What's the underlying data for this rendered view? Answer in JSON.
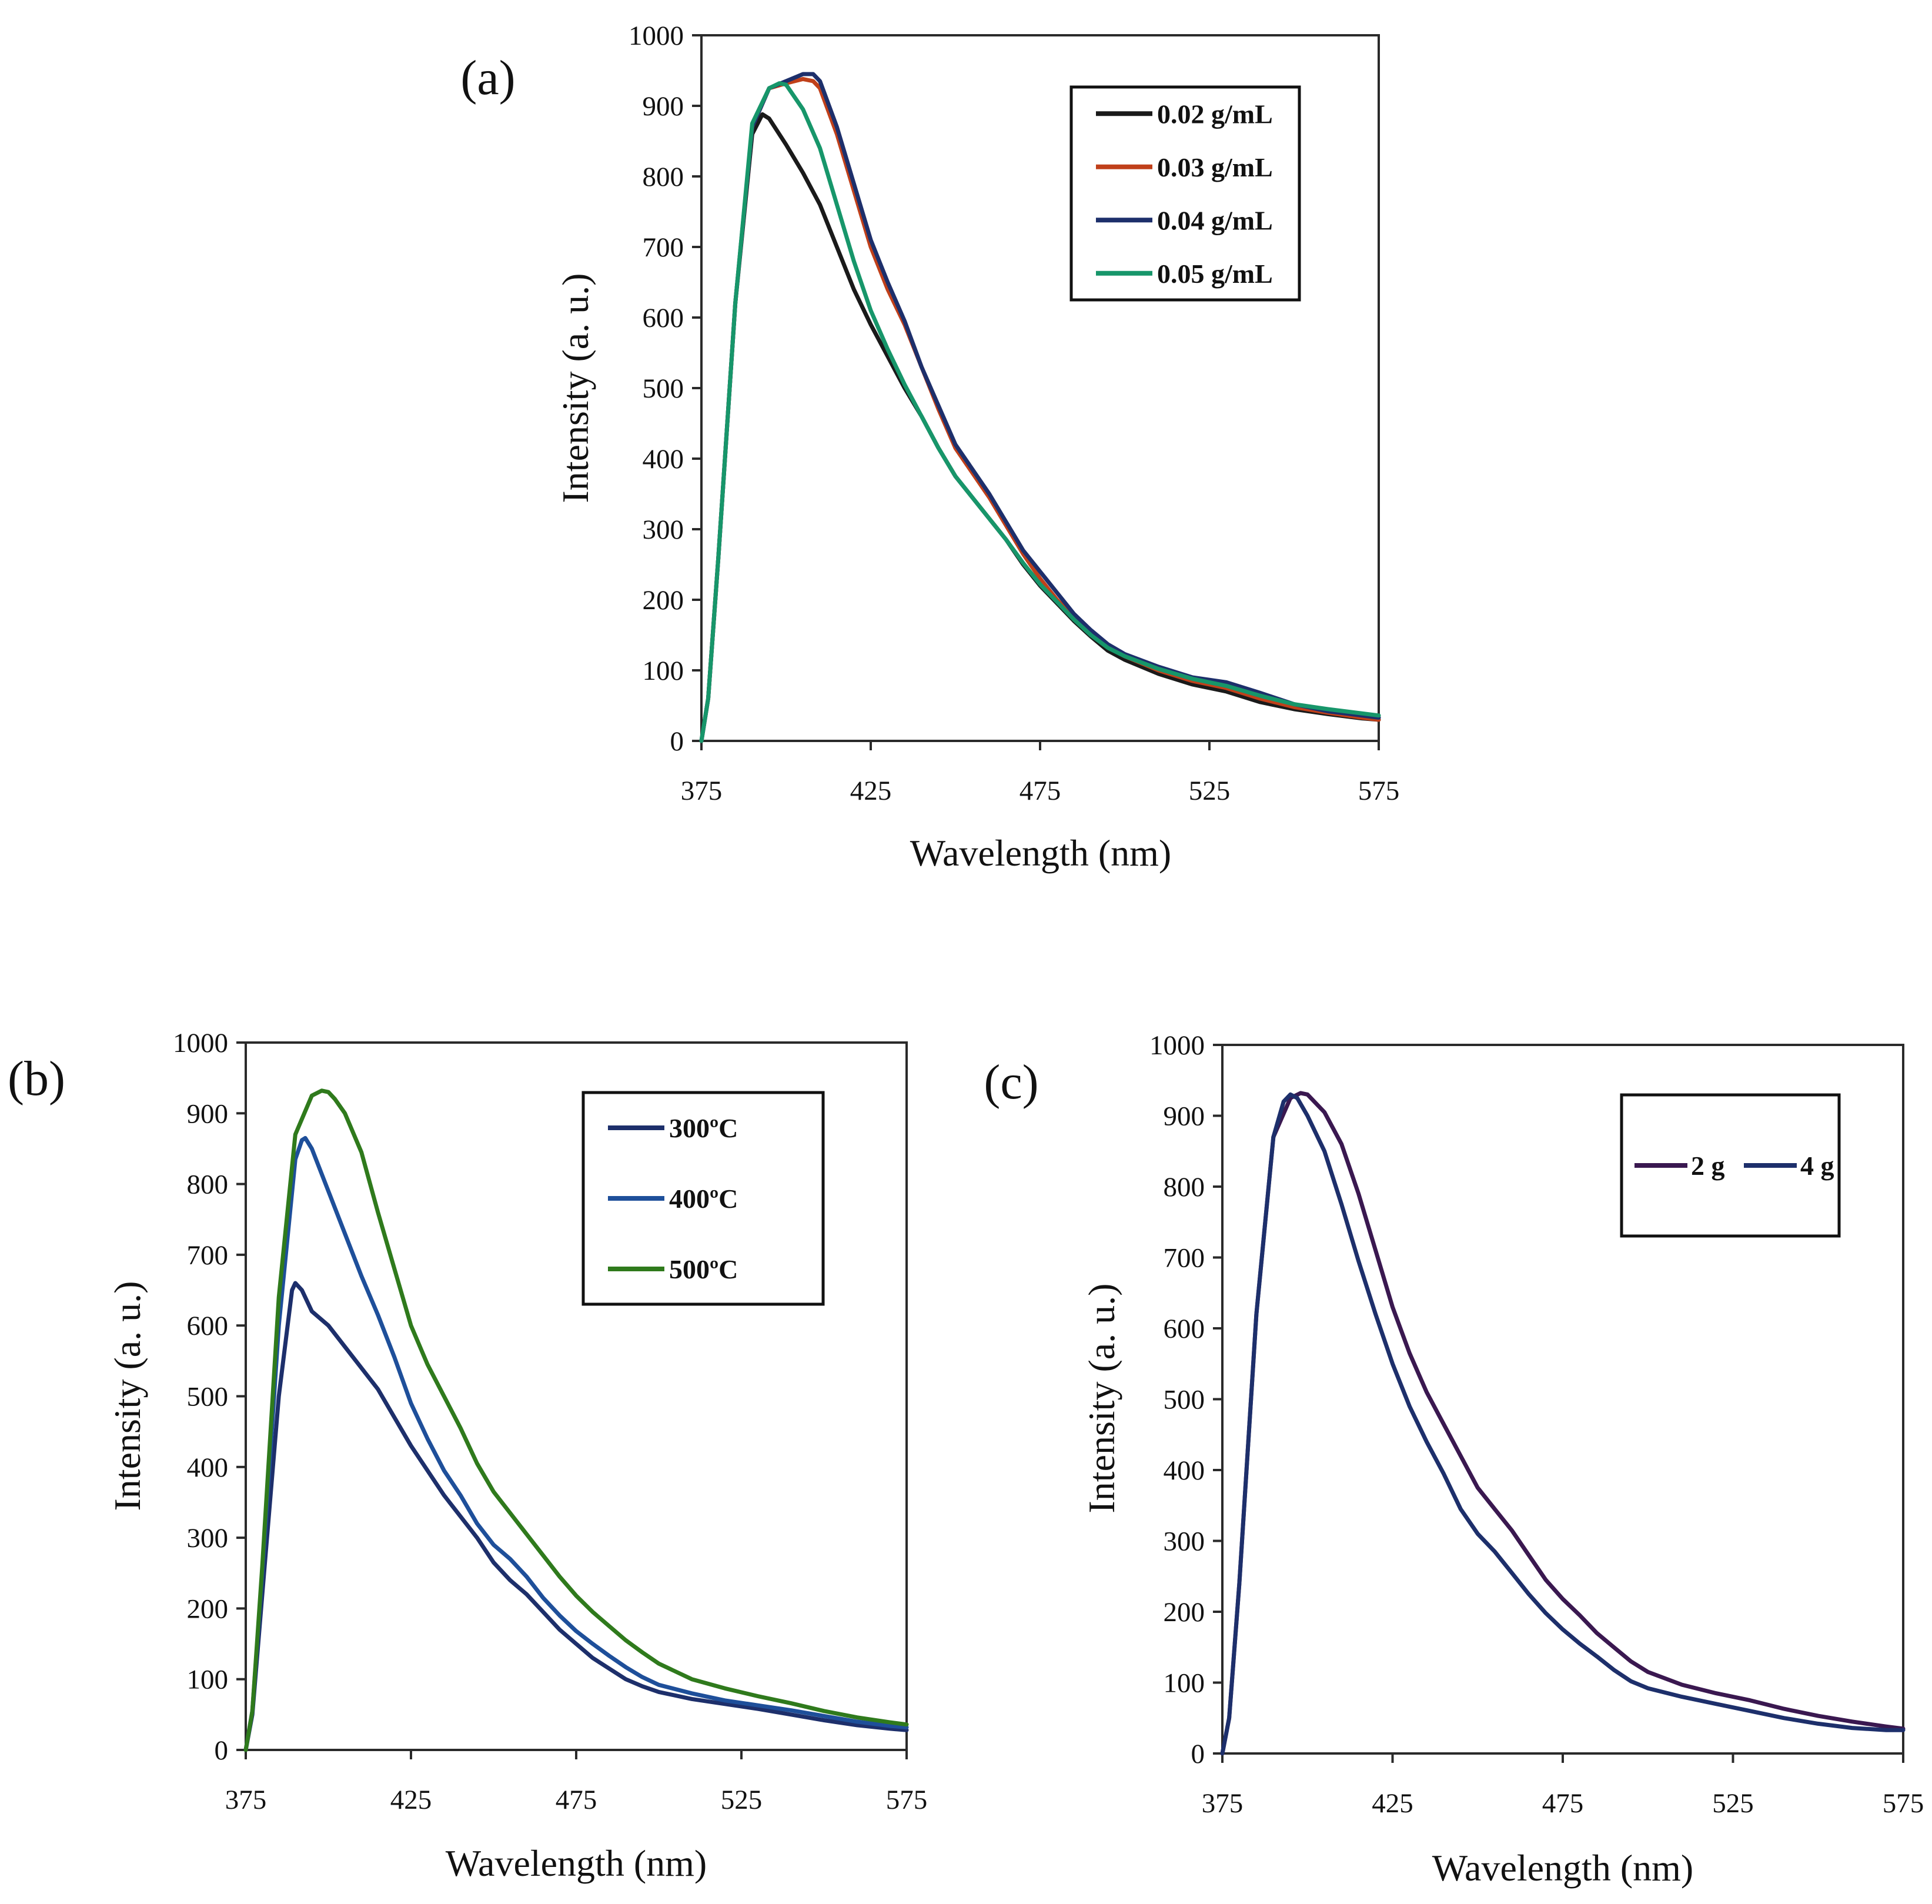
{
  "chart_data": [
    {
      "id": "a",
      "type": "line",
      "panel_label": "(a)",
      "xlabel": "Wavelength  (nm)",
      "ylabel": "Intensity  (a. u.)",
      "xlim": [
        375,
        575
      ],
      "ylim": [
        0,
        1000
      ],
      "xticks": [
        375,
        425,
        475,
        525,
        575
      ],
      "yticks": [
        0,
        100,
        200,
        300,
        400,
        500,
        600,
        700,
        800,
        900,
        1000
      ],
      "legend_position": "top-right",
      "legend_layout": "vertical",
      "series": [
        {
          "name": "0.02 g/mL",
          "color": "#1a1a1a",
          "x": [
            375,
            377,
            380,
            385,
            390,
            393,
            395,
            400,
            405,
            410,
            415,
            420,
            425,
            430,
            435,
            440,
            445,
            450,
            455,
            460,
            465,
            470,
            475,
            480,
            485,
            490,
            495,
            500,
            510,
            520,
            530,
            540,
            550,
            560,
            570,
            575
          ],
          "y": [
            0,
            60,
            260,
            620,
            860,
            888,
            882,
            845,
            805,
            760,
            700,
            640,
            590,
            545,
            500,
            460,
            415,
            375,
            345,
            315,
            285,
            250,
            220,
            195,
            170,
            148,
            128,
            115,
            95,
            80,
            70,
            55,
            45,
            38,
            32,
            30
          ]
        },
        {
          "name": "0.03 g/mL",
          "color": "#c0401a",
          "x": [
            375,
            377,
            380,
            385,
            390,
            395,
            400,
            405,
            408,
            410,
            415,
            420,
            425,
            430,
            435,
            440,
            445,
            450,
            455,
            460,
            465,
            470,
            475,
            480,
            485,
            490,
            495,
            500,
            510,
            520,
            530,
            540,
            550,
            560,
            570,
            575
          ],
          "y": [
            0,
            60,
            260,
            620,
            870,
            925,
            932,
            938,
            935,
            925,
            860,
            780,
            700,
            640,
            590,
            530,
            470,
            415,
            380,
            345,
            305,
            265,
            230,
            200,
            175,
            152,
            133,
            120,
            100,
            85,
            75,
            60,
            48,
            40,
            33,
            30
          ]
        },
        {
          "name": "0.04 g/mL",
          "color": "#1d2f6b",
          "x": [
            375,
            377,
            380,
            385,
            390,
            395,
            400,
            405,
            408,
            410,
            415,
            420,
            425,
            430,
            435,
            440,
            445,
            450,
            455,
            460,
            465,
            470,
            475,
            480,
            485,
            490,
            495,
            500,
            510,
            520,
            530,
            540,
            550,
            560,
            570,
            575
          ],
          "y": [
            0,
            60,
            260,
            620,
            870,
            925,
            935,
            945,
            945,
            935,
            870,
            790,
            710,
            650,
            595,
            530,
            475,
            420,
            385,
            350,
            310,
            270,
            240,
            210,
            180,
            157,
            137,
            123,
            105,
            90,
            83,
            68,
            52,
            42,
            36,
            33
          ]
        },
        {
          "name": "0.05 g/mL",
          "color": "#17966a",
          "x": [
            375,
            377,
            380,
            385,
            390,
            395,
            398,
            400,
            405,
            410,
            415,
            420,
            425,
            430,
            435,
            440,
            445,
            450,
            455,
            460,
            465,
            470,
            475,
            480,
            485,
            490,
            495,
            500,
            510,
            520,
            530,
            540,
            550,
            560,
            570,
            575
          ],
          "y": [
            0,
            60,
            260,
            620,
            875,
            925,
            932,
            930,
            895,
            840,
            760,
            680,
            610,
            555,
            505,
            460,
            415,
            375,
            345,
            315,
            285,
            252,
            222,
            197,
            172,
            150,
            132,
            120,
            102,
            88,
            78,
            64,
            52,
            45,
            39,
            36
          ]
        }
      ]
    },
    {
      "id": "b",
      "type": "line",
      "panel_label": "(b)",
      "xlabel": "Wavelength  (nm)",
      "ylabel": "Intensity  (a. u.)",
      "xlim": [
        375,
        575
      ],
      "ylim": [
        0,
        1000
      ],
      "xticks": [
        375,
        425,
        475,
        525,
        575
      ],
      "yticks": [
        0,
        100,
        200,
        300,
        400,
        500,
        600,
        700,
        800,
        900,
        1000
      ],
      "legend_position": "top-right",
      "legend_layout": "vertical",
      "series": [
        {
          "name": "300ºC",
          "color": "#1d2f6b",
          "x": [
            375,
            377,
            380,
            385,
            389,
            390,
            392,
            395,
            400,
            405,
            410,
            415,
            420,
            425,
            430,
            435,
            440,
            445,
            450,
            455,
            460,
            465,
            470,
            475,
            480,
            485,
            490,
            495,
            500,
            510,
            520,
            530,
            540,
            550,
            560,
            570,
            575
          ],
          "y": [
            0,
            50,
            220,
            500,
            650,
            660,
            650,
            620,
            600,
            570,
            540,
            510,
            470,
            430,
            395,
            360,
            330,
            300,
            265,
            240,
            220,
            195,
            170,
            150,
            130,
            115,
            100,
            90,
            82,
            72,
            65,
            58,
            50,
            42,
            35,
            30,
            28
          ]
        },
        {
          "name": "400ºC",
          "color": "#1e4f9a",
          "x": [
            375,
            377,
            380,
            385,
            390,
            392,
            393,
            395,
            400,
            405,
            410,
            415,
            420,
            425,
            430,
            435,
            440,
            445,
            450,
            455,
            460,
            465,
            470,
            475,
            480,
            485,
            490,
            495,
            500,
            510,
            520,
            530,
            540,
            550,
            560,
            570,
            575
          ],
          "y": [
            0,
            55,
            250,
            600,
            835,
            862,
            865,
            850,
            790,
            730,
            670,
            615,
            555,
            490,
            440,
            395,
            360,
            320,
            290,
            270,
            245,
            215,
            190,
            168,
            150,
            133,
            117,
            103,
            92,
            80,
            70,
            63,
            56,
            48,
            40,
            34,
            32
          ]
        },
        {
          "name": "500ºC",
          "color": "#2f7a1c",
          "x": [
            375,
            377,
            380,
            385,
            390,
            395,
            398,
            400,
            402,
            405,
            410,
            415,
            420,
            425,
            430,
            435,
            440,
            445,
            450,
            455,
            460,
            465,
            470,
            475,
            480,
            485,
            490,
            495,
            500,
            510,
            520,
            530,
            540,
            550,
            560,
            570,
            575
          ],
          "y": [
            0,
            55,
            260,
            640,
            870,
            925,
            932,
            930,
            920,
            900,
            845,
            760,
            680,
            600,
            545,
            500,
            455,
            405,
            365,
            335,
            305,
            275,
            245,
            218,
            195,
            175,
            155,
            138,
            122,
            100,
            87,
            76,
            66,
            55,
            46,
            39,
            36
          ]
        }
      ]
    },
    {
      "id": "c",
      "type": "line",
      "panel_label": "(c)",
      "xlabel": "Wavelength  (nm)",
      "ylabel": "Intensity  (a. u.)",
      "xlim": [
        375,
        575
      ],
      "ylim": [
        0,
        1000
      ],
      "xticks": [
        375,
        425,
        475,
        525,
        575
      ],
      "yticks": [
        0,
        100,
        200,
        300,
        400,
        500,
        600,
        700,
        800,
        900,
        1000
      ],
      "legend_position": "top-right",
      "legend_layout": "horizontal",
      "series": [
        {
          "name": "2 g",
          "color": "#3a1850",
          "x": [
            375,
            377,
            380,
            385,
            390,
            395,
            398,
            400,
            405,
            410,
            415,
            420,
            425,
            430,
            435,
            440,
            445,
            450,
            455,
            460,
            465,
            470,
            475,
            480,
            485,
            490,
            495,
            500,
            510,
            520,
            530,
            540,
            550,
            560,
            570,
            575
          ],
          "y": [
            0,
            50,
            240,
            620,
            870,
            925,
            932,
            930,
            905,
            860,
            790,
            710,
            630,
            565,
            510,
            465,
            420,
            375,
            345,
            315,
            280,
            245,
            218,
            195,
            170,
            150,
            130,
            115,
            97,
            85,
            75,
            63,
            53,
            45,
            38,
            35
          ]
        },
        {
          "name": "4 g",
          "color": "#1d2f6b",
          "x": [
            375,
            377,
            380,
            385,
            390,
            393,
            395,
            397,
            400,
            405,
            410,
            415,
            420,
            425,
            430,
            435,
            440,
            445,
            450,
            455,
            460,
            465,
            470,
            475,
            480,
            485,
            490,
            495,
            500,
            510,
            520,
            530,
            540,
            550,
            560,
            570,
            575
          ],
          "y": [
            0,
            50,
            240,
            620,
            870,
            920,
            930,
            925,
            900,
            850,
            775,
            695,
            620,
            550,
            490,
            440,
            395,
            345,
            310,
            285,
            255,
            225,
            198,
            175,
            155,
            137,
            118,
            102,
            92,
            80,
            70,
            60,
            50,
            42,
            36,
            33,
            33
          ]
        }
      ]
    }
  ]
}
